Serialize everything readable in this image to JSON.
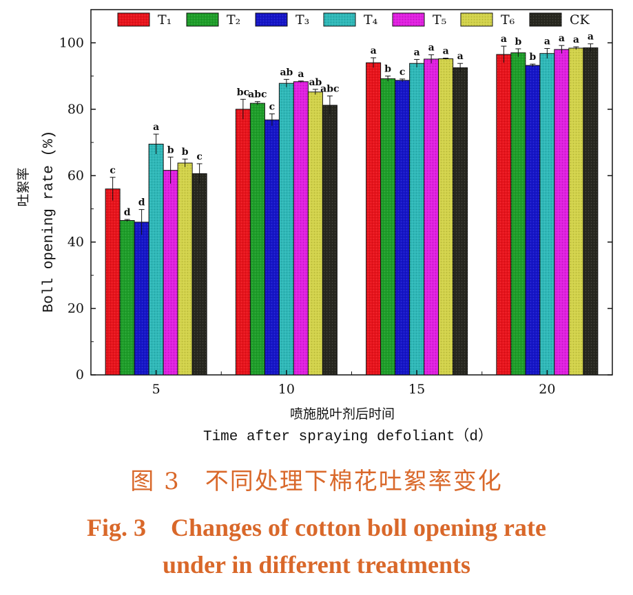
{
  "chart_data": {
    "type": "bar",
    "xlabel_cn": "喷施脱叶剂后时间",
    "xlabel": "Time after spraying defoliant（d）",
    "ylabel_cn": "吐絮率",
    "ylabel": "Boll opening rate (%)",
    "ylim": [
      0,
      110
    ],
    "yticks": [
      "0",
      "20",
      "40",
      "60",
      "80",
      "100"
    ],
    "categories": [
      "5",
      "10",
      "15",
      "20"
    ],
    "legend_position": "top",
    "series": [
      {
        "name": "T₁",
        "color": "#e8141c",
        "values": [
          56,
          80,
          94,
          96.5
        ],
        "errors": [
          3.5,
          3,
          1.5,
          2.5
        ],
        "letters": [
          "c",
          "bc",
          "a",
          "a"
        ]
      },
      {
        "name": "T₂",
        "color": "#1f9e2a",
        "values": [
          46.5,
          81.8,
          89.2,
          97
        ],
        "errors": [
          0.3,
          0.5,
          0.8,
          1.2
        ],
        "letters": [
          "d",
          "abc",
          "b",
          "b"
        ]
      },
      {
        "name": "T₃",
        "color": "#1616c8",
        "values": [
          46,
          76.8,
          88.7,
          93.2
        ],
        "errors": [
          3.8,
          1.8,
          0.4,
          0.4
        ],
        "letters": [
          "d",
          "c",
          "c",
          "b"
        ]
      },
      {
        "name": "T₄",
        "color": "#2fb8b8",
        "values": [
          69.5,
          87.8,
          93.8,
          96.8
        ],
        "errors": [
          3,
          1.2,
          1.2,
          1.5
        ],
        "letters": [
          "a",
          "ab",
          "a",
          "a"
        ]
      },
      {
        "name": "T₅",
        "color": "#e020e0",
        "values": [
          61.6,
          88.3,
          95.1,
          98
        ],
        "errors": [
          4,
          0.2,
          1.3,
          1.2
        ],
        "letters": [
          "b",
          "a",
          "a",
          "a"
        ]
      },
      {
        "name": "T₆",
        "color": "#d2d24a",
        "values": [
          63.8,
          85.2,
          95.2,
          98.4
        ],
        "errors": [
          1.2,
          0.8,
          0.2,
          0.4
        ],
        "letters": [
          "b",
          "ab",
          "a",
          "a"
        ]
      },
      {
        "name": "CK",
        "color": "#282820",
        "values": [
          60.6,
          81.2,
          92.5,
          98.5
        ],
        "errors": [
          3,
          2.8,
          1.3,
          1.2
        ],
        "letters": [
          "c",
          "abc",
          "a",
          "a"
        ]
      }
    ]
  },
  "caption": {
    "cn": "图 3　不同处理下棉花吐絮率变化",
    "en_line1": "Fig. 3　Changes of cotton boll opening rate",
    "en_line2": "under in different treatments"
  }
}
